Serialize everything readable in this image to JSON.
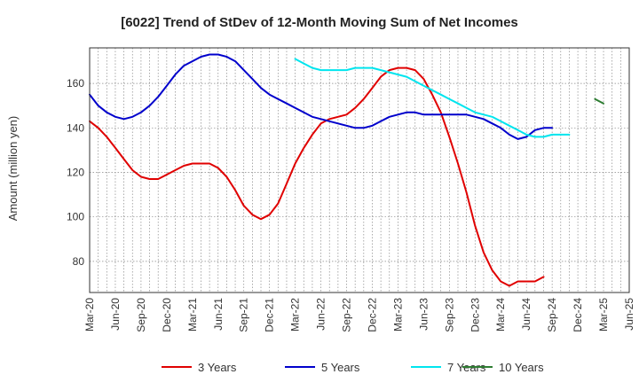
{
  "chart_data": {
    "type": "line",
    "title": "[6022]  Trend of StDev of 12-Month Moving Sum of Net Incomes",
    "xlabel": "",
    "ylabel": "Amount (million yen)",
    "ylim": [
      66,
      176
    ],
    "yticks": [
      80,
      100,
      120,
      140,
      160
    ],
    "x_tick_labels": [
      "Mar-20",
      "Jun-20",
      "Sep-20",
      "Dec-20",
      "Mar-21",
      "Jun-21",
      "Sep-21",
      "Dec-21",
      "Mar-22",
      "Jun-22",
      "Sep-22",
      "Dec-22",
      "Mar-23",
      "Jun-23",
      "Sep-23",
      "Dec-23",
      "Mar-24",
      "Jun-24",
      "Sep-24",
      "Dec-24",
      "Mar-25",
      "Jun-25"
    ],
    "x_start": "2020-03",
    "x_end": "2025-06",
    "grid": true,
    "legend_position": "bottom",
    "series": [
      {
        "name": "3 Years",
        "color": "#e00000",
        "start": "2020-03",
        "values": [
          143,
          140,
          136,
          131,
          126,
          121,
          118,
          117,
          117,
          119,
          121,
          123,
          124,
          124,
          124,
          122,
          118,
          112,
          105,
          101,
          99,
          101,
          106,
          115,
          124,
          131,
          137,
          142,
          144,
          145,
          146,
          149,
          153,
          158,
          163,
          166,
          167,
          167,
          166,
          162,
          155,
          147,
          136,
          124,
          111,
          96,
          84,
          76,
          71,
          69,
          71,
          71,
          71,
          73
        ]
      },
      {
        "name": "5 Years",
        "color": "#0000cc",
        "start": "2020-03",
        "values": [
          155,
          150,
          147,
          145,
          144,
          145,
          147,
          150,
          154,
          159,
          164,
          168,
          170,
          172,
          173,
          173,
          172,
          170,
          166,
          162,
          158,
          155,
          153,
          151,
          149,
          147,
          145,
          144,
          143,
          142,
          141,
          140,
          140,
          141,
          143,
          145,
          146,
          147,
          147,
          146,
          146,
          146,
          146,
          146,
          146,
          145,
          144,
          142,
          140,
          137,
          135,
          136,
          139,
          140,
          140
        ]
      },
      {
        "name": "7 Years",
        "color": "#00e5ee",
        "start": "2022-03",
        "values": [
          171,
          169,
          167,
          166,
          166,
          166,
          166,
          167,
          167,
          167,
          166,
          165,
          164,
          163,
          161,
          159,
          157,
          155,
          153,
          151,
          149,
          147,
          146,
          145,
          143,
          141,
          139,
          137,
          136,
          136,
          137,
          137,
          137
        ]
      },
      {
        "name": "10 Years",
        "color": "#2e7d32",
        "start": "2025-02",
        "values": [
          153,
          151
        ]
      }
    ]
  }
}
